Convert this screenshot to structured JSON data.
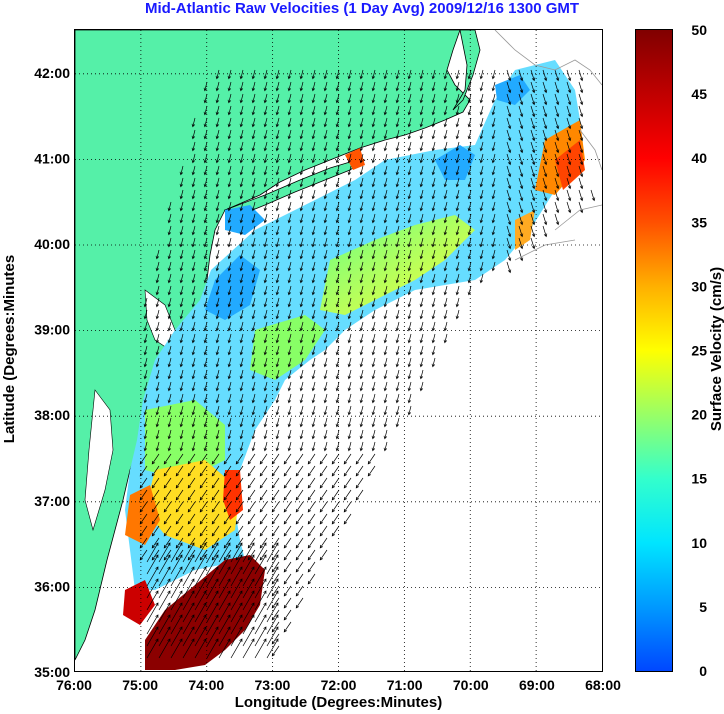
{
  "title": "Mid-Atlantic Raw Velocities (1 Day Avg) 2009/12/16 1300 GMT",
  "axes": {
    "xlabel": "Longitude (Degrees:Minutes)",
    "ylabel": "Latitude (Degrees:Minutes",
    "x_ticks": [
      "76:00",
      "75:00",
      "74:00",
      "73:00",
      "72:00",
      "71:00",
      "70:00",
      "69:00",
      "68:00"
    ],
    "y_ticks": [
      "35:00",
      "36:00",
      "37:00",
      "38:00",
      "39:00",
      "40:00",
      "41:00",
      "42:00"
    ],
    "grid": "dotted"
  },
  "colorbar": {
    "label": "Surface Velocity (cm/s)",
    "ticks": [
      "0",
      "5",
      "10",
      "15",
      "20",
      "25",
      "30",
      "35",
      "40",
      "45",
      "50"
    ],
    "colormap": [
      "#0047ff",
      "#0099ff",
      "#00e5ff",
      "#33ffcc",
      "#99ff66",
      "#ffff00",
      "#ffb000",
      "#ff5000",
      "#ff0000",
      "#c00000",
      "#800000"
    ]
  },
  "colors": {
    "land": "#55f0a8",
    "ocean": "#ffffff",
    "arrow": "#000000",
    "title": "#1a1aff"
  }
}
